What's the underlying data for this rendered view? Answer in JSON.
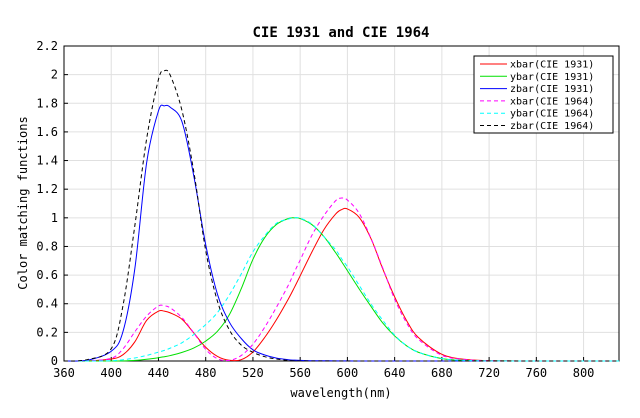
{
  "chart_data": {
    "type": "line",
    "title": "CIE 1931 and CIE 1964",
    "xlabel": "wavelength(nm)",
    "ylabel": "Color matching functions",
    "xlim": [
      360,
      830
    ],
    "ylim": [
      0,
      2.2
    ],
    "xticks": [
      360,
      400,
      440,
      480,
      520,
      560,
      600,
      640,
      680,
      720,
      760,
      800
    ],
    "yticks": [
      0,
      0.2,
      0.4,
      0.6,
      0.8,
      1,
      1.2,
      1.4,
      1.6,
      1.8,
      2,
      2.2
    ],
    "grid": true,
    "legend": "top-right",
    "x": [
      360,
      380,
      400,
      410,
      420,
      430,
      440,
      445,
      450,
      460,
      470,
      480,
      490,
      500,
      510,
      520,
      530,
      540,
      550,
      555,
      560,
      570,
      580,
      590,
      595,
      600,
      610,
      620,
      630,
      640,
      650,
      660,
      680,
      700,
      720,
      760,
      800,
      830
    ],
    "series": [
      {
        "name": "xbar(CIE 1931)",
        "color": "#ff0000",
        "dash": "solid",
        "values": [
          0,
          0.001,
          0.014,
          0.044,
          0.134,
          0.284,
          0.348,
          0.348,
          0.336,
          0.291,
          0.195,
          0.096,
          0.032,
          0.005,
          0.009,
          0.063,
          0.165,
          0.29,
          0.433,
          0.512,
          0.595,
          0.762,
          0.916,
          1.026,
          1.057,
          1.062,
          1.003,
          0.854,
          0.642,
          0.448,
          0.284,
          0.165,
          0.047,
          0.011,
          0.003,
          0.0001,
          0,
          0
        ]
      },
      {
        "name": "ybar(CIE 1931)",
        "color": "#00e000",
        "dash": "solid",
        "values": [
          0,
          0,
          0,
          0.001,
          0.004,
          0.012,
          0.023,
          0.03,
          0.038,
          0.06,
          0.091,
          0.139,
          0.208,
          0.323,
          0.503,
          0.71,
          0.862,
          0.954,
          0.995,
          1.0,
          0.995,
          0.952,
          0.87,
          0.757,
          0.695,
          0.631,
          0.503,
          0.381,
          0.265,
          0.175,
          0.107,
          0.061,
          0.017,
          0.004,
          0.001,
          0,
          0,
          0
        ]
      },
      {
        "name": "zbar(CIE 1931)",
        "color": "#0000ff",
        "dash": "solid",
        "values": [
          0,
          0.006,
          0.068,
          0.207,
          0.646,
          1.386,
          1.747,
          1.782,
          1.772,
          1.669,
          1.288,
          0.813,
          0.465,
          0.272,
          0.158,
          0.078,
          0.042,
          0.02,
          0.009,
          0.006,
          0.004,
          0.002,
          0.002,
          0.001,
          0.001,
          0.001,
          0,
          0,
          0,
          0,
          0,
          0,
          0,
          0,
          0,
          0,
          0,
          0
        ]
      },
      {
        "name": "xbar(CIE 1964)",
        "color": "#ff00ff",
        "dash": "dashed",
        "values": [
          0,
          0.002,
          0.019,
          0.085,
          0.204,
          0.314,
          0.384,
          0.385,
          0.371,
          0.302,
          0.195,
          0.081,
          0.016,
          0.004,
          0.038,
          0.117,
          0.236,
          0.377,
          0.53,
          0.62,
          0.705,
          0.879,
          1.014,
          1.119,
          1.138,
          1.124,
          1.031,
          0.856,
          0.648,
          0.432,
          0.268,
          0.153,
          0.04,
          0.01,
          0.002,
          0.0001,
          0,
          0
        ]
      },
      {
        "name": "ybar(CIE 1964)",
        "color": "#00ffff",
        "dash": "dashed",
        "values": [
          0,
          0,
          0.002,
          0.009,
          0.021,
          0.039,
          0.062,
          0.074,
          0.09,
          0.128,
          0.185,
          0.254,
          0.339,
          0.461,
          0.607,
          0.762,
          0.875,
          0.962,
          0.992,
          1.0,
          0.997,
          0.956,
          0.869,
          0.777,
          0.715,
          0.658,
          0.528,
          0.398,
          0.284,
          0.18,
          0.108,
          0.061,
          0.017,
          0.004,
          0.001,
          0,
          0,
          0
        ]
      },
      {
        "name": "zbar(CIE 1964)",
        "color": "#000000",
        "dash": "dashed",
        "values": [
          0,
          0.01,
          0.086,
          0.389,
          0.946,
          1.553,
          1.967,
          2.027,
          1.995,
          1.746,
          1.318,
          0.772,
          0.416,
          0.218,
          0.112,
          0.061,
          0.03,
          0.014,
          0.004,
          0.001,
          0,
          0,
          0,
          0,
          0,
          0,
          0,
          0,
          0,
          0,
          0,
          0,
          0,
          0,
          0,
          0,
          0,
          0
        ]
      }
    ]
  }
}
